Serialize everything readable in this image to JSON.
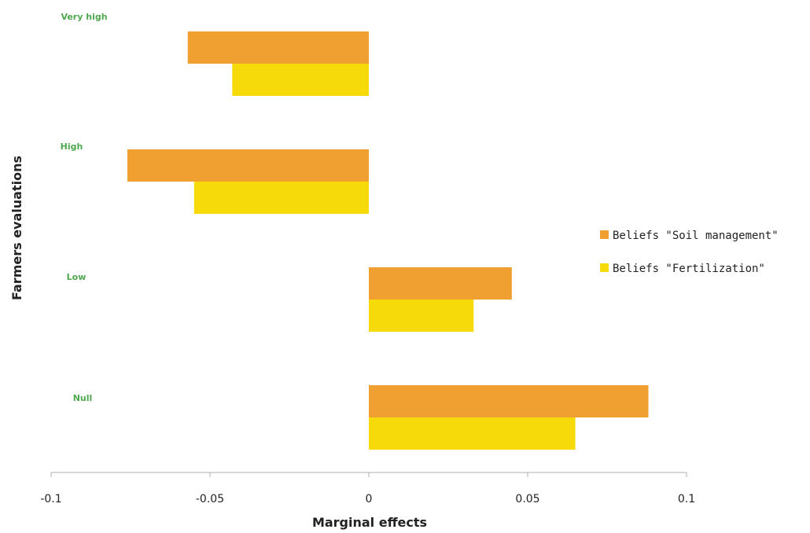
{
  "chart_data": {
    "type": "bar",
    "orientation": "horizontal",
    "categories": [
      "Very high",
      "High",
      "Low",
      "Null"
    ],
    "series": [
      {
        "name": "Beliefs \"Soil management\"",
        "color": "#F0A030",
        "values": [
          -0.057,
          -0.076,
          0.045,
          0.088
        ]
      },
      {
        "name": "Beliefs \"Fertilization\"",
        "color": "#F7DA0A",
        "values": [
          -0.043,
          -0.055,
          0.033,
          0.065
        ]
      }
    ],
    "xlabel": "Marginal effects",
    "ylabel": "Farmers evaluations",
    "xlim": [
      -0.1,
      0.1
    ],
    "xticks": [
      -0.1,
      -0.05,
      0,
      0.05,
      0.1
    ],
    "xtick_labels": [
      "-0.1",
      "-0.05",
      "0",
      "0.05",
      "0.1"
    ],
    "category_label_color": "#4FA84F",
    "legend_position": "right",
    "grid": false
  }
}
